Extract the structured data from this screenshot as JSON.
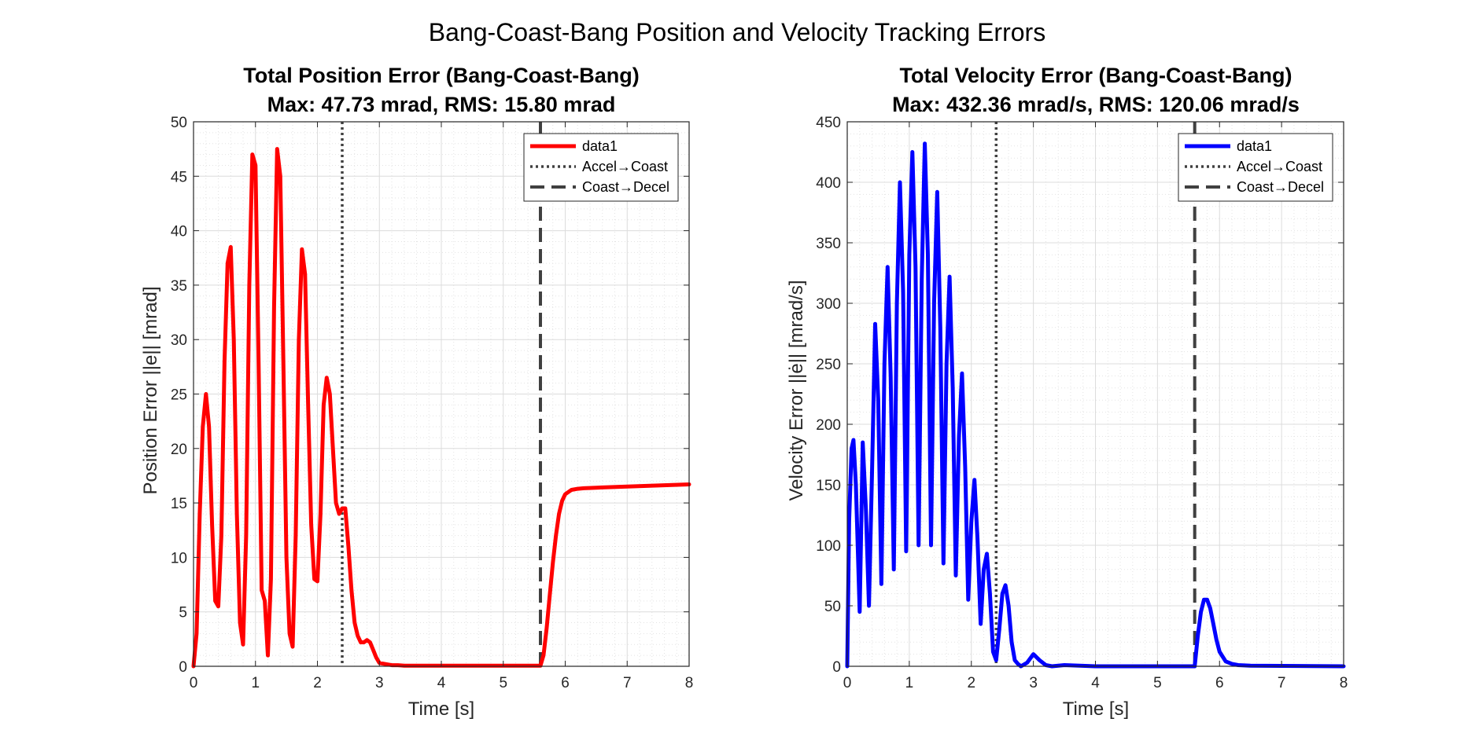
{
  "figure": {
    "title": "Bang-Coast-Bang Position and Velocity Tracking Errors"
  },
  "chart_data": [
    {
      "type": "line",
      "title": "Total Position Error (Bang-Coast-Bang)",
      "subtitle": "Max: 47.73 mrad, RMS: 15.80 mrad",
      "xlabel": "Time [s]",
      "ylabel": "Position Error ||e|| [mrad]",
      "xlim": [
        0,
        8
      ],
      "ylim": [
        0,
        50
      ],
      "xticks": [
        0,
        1,
        2,
        3,
        4,
        5,
        6,
        7,
        8
      ],
      "yticks": [
        0,
        5,
        10,
        15,
        20,
        25,
        30,
        35,
        40,
        45,
        50
      ],
      "grid": true,
      "minor_grid": true,
      "legend_location": "top-right",
      "vlines": [
        {
          "x": 2.4,
          "label": "Accel→Coast",
          "style": "dotted",
          "color": "#404040"
        },
        {
          "x": 5.6,
          "label": "Coast→Decel",
          "style": "dashed",
          "color": "#404040"
        }
      ],
      "series": [
        {
          "name": "data1",
          "color": "#ff0000",
          "x": [
            0,
            0.05,
            0.1,
            0.15,
            0.2,
            0.25,
            0.3,
            0.35,
            0.4,
            0.45,
            0.5,
            0.55,
            0.6,
            0.65,
            0.7,
            0.75,
            0.8,
            0.85,
            0.9,
            0.95,
            1.0,
            1.05,
            1.1,
            1.15,
            1.2,
            1.25,
            1.3,
            1.35,
            1.4,
            1.45,
            1.5,
            1.55,
            1.6,
            1.65,
            1.7,
            1.75,
            1.8,
            1.85,
            1.9,
            1.95,
            2.0,
            2.05,
            2.1,
            2.15,
            2.2,
            2.25,
            2.3,
            2.35,
            2.4,
            2.45,
            2.5,
            2.55,
            2.6,
            2.65,
            2.7,
            2.75,
            2.8,
            2.85,
            2.9,
            2.95,
            3.0,
            3.1,
            3.2,
            3.3,
            3.4,
            3.5,
            3.7,
            4.0,
            4.5,
            5.0,
            5.5,
            5.6,
            5.65,
            5.7,
            5.75,
            5.8,
            5.85,
            5.9,
            5.95,
            6.0,
            6.1,
            6.2,
            6.3,
            6.5,
            7.0,
            7.5,
            8.0
          ],
          "values": [
            0,
            3,
            14,
            22,
            25,
            22,
            13,
            6,
            5.5,
            12,
            28,
            37,
            38.5,
            30,
            14,
            4,
            2,
            12,
            35,
            47,
            46,
            28,
            7,
            6,
            1,
            8,
            33,
            47.5,
            45,
            28,
            10,
            3,
            1.8,
            12,
            30,
            38.3,
            36,
            24,
            13,
            8,
            7.8,
            14,
            24,
            26.5,
            25,
            20,
            15,
            14,
            14.5,
            14.5,
            11,
            7,
            4,
            2.8,
            2.2,
            2.2,
            2.4,
            2.2,
            1.5,
            0.8,
            0.3,
            0.2,
            0.1,
            0.1,
            0.05,
            0.05,
            0.05,
            0.05,
            0.05,
            0.05,
            0.05,
            0.05,
            1,
            3.5,
            6.5,
            9.5,
            12,
            14,
            15.2,
            15.8,
            16.2,
            16.3,
            16.35,
            16.4,
            16.5,
            16.6,
            16.7
          ]
        }
      ]
    },
    {
      "type": "line",
      "title": "Total Velocity Error (Bang-Coast-Bang)",
      "subtitle": "Max: 432.36 mrad/s, RMS: 120.06 mrad/s",
      "xlabel": "Time [s]",
      "ylabel": "Velocity Error ||ė|| [mrad/s]",
      "xlim": [
        0,
        8
      ],
      "ylim": [
        0,
        450
      ],
      "xticks": [
        0,
        1,
        2,
        3,
        4,
        5,
        6,
        7,
        8
      ],
      "yticks": [
        0,
        50,
        100,
        150,
        200,
        250,
        300,
        350,
        400,
        450
      ],
      "grid": true,
      "minor_grid": true,
      "legend_location": "top-right",
      "vlines": [
        {
          "x": 2.4,
          "label": "Accel→Coast",
          "style": "dotted",
          "color": "#404040"
        },
        {
          "x": 5.6,
          "label": "Coast→Decel",
          "style": "dashed",
          "color": "#404040"
        }
      ],
      "series": [
        {
          "name": "data1",
          "color": "#0000ff",
          "x": [
            0,
            0.03,
            0.07,
            0.1,
            0.14,
            0.2,
            0.25,
            0.3,
            0.35,
            0.4,
            0.45,
            0.5,
            0.55,
            0.6,
            0.65,
            0.7,
            0.75,
            0.8,
            0.85,
            0.9,
            0.95,
            1.0,
            1.05,
            1.1,
            1.15,
            1.2,
            1.25,
            1.3,
            1.35,
            1.4,
            1.45,
            1.5,
            1.55,
            1.6,
            1.65,
            1.7,
            1.75,
            1.8,
            1.85,
            1.9,
            1.95,
            2.0,
            2.05,
            2.1,
            2.15,
            2.2,
            2.25,
            2.3,
            2.35,
            2.4,
            2.45,
            2.5,
            2.55,
            2.6,
            2.65,
            2.7,
            2.75,
            2.8,
            2.9,
            3.0,
            3.1,
            3.2,
            3.3,
            3.5,
            4.0,
            4.5,
            5.0,
            5.5,
            5.6,
            5.65,
            5.7,
            5.75,
            5.8,
            5.85,
            5.9,
            5.95,
            6.0,
            6.1,
            6.2,
            6.3,
            6.5,
            7.0,
            7.5,
            8.0
          ],
          "values": [
            0,
            120,
            180,
            187,
            150,
            45,
            185,
            130,
            50,
            160,
            283,
            220,
            68,
            250,
            330,
            240,
            80,
            300,
            400,
            310,
            95,
            340,
            425,
            330,
            100,
            320,
            432,
            340,
            100,
            300,
            392,
            280,
            85,
            250,
            322,
            230,
            75,
            190,
            242,
            165,
            55,
            120,
            154,
            105,
            35,
            80,
            93,
            60,
            12,
            5,
            30,
            60,
            67,
            50,
            20,
            5,
            2,
            0,
            3,
            10,
            5,
            1,
            0,
            1,
            0,
            0,
            0,
            0,
            0,
            25,
            45,
            55,
            55,
            48,
            35,
            22,
            12,
            4,
            2,
            1,
            0.5,
            0.3,
            0.2,
            0
          ]
        }
      ]
    }
  ]
}
